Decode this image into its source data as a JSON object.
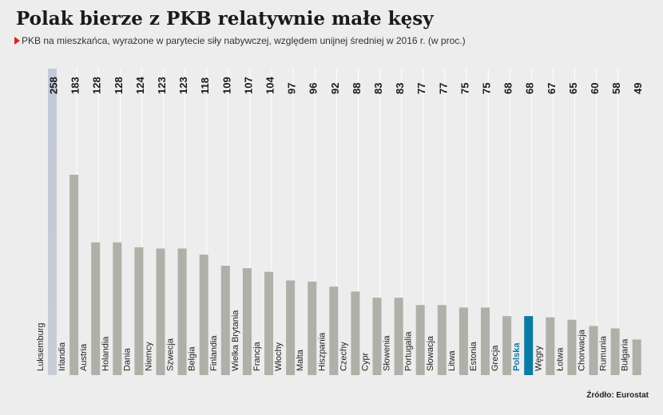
{
  "title": "Polak bierze z PKB relatywnie małe kęsy",
  "subtitle": "PKB na mieszkańca, wyrażone w parytecie siły nabywczej, względem unijnej średniej w 2016 r. (w proc.)",
  "source": "Źródło: Eurostat",
  "colors": {
    "background": "#ededed",
    "bar": "#b0b0a8",
    "bar_highlight_top": "#c2cad8",
    "highlight_label": "#0a7ba3",
    "separator": "#ffffff"
  },
  "chart_data": {
    "type": "bar",
    "categories": [
      "Luksemburg",
      "Irlandia",
      "Austria",
      "Holandia",
      "Dania",
      "Niemcy",
      "Szwecja",
      "Belgia",
      "Finlandia",
      "Wielka Brytania",
      "Francja",
      "Włochy",
      "Malta",
      "Hiszpania",
      "Czechy",
      "Cypr",
      "Słowenia",
      "Portugalia",
      "Słowacja",
      "Litwa",
      "Estonia",
      "Grecja",
      "Polska",
      "Węgry",
      "Łotwa",
      "Chorwacja",
      "Rumunia",
      "Bułgaria"
    ],
    "values": [
      258,
      183,
      128,
      128,
      124,
      123,
      123,
      118,
      109,
      107,
      104,
      97,
      96,
      92,
      88,
      83,
      83,
      77,
      77,
      75,
      75,
      68,
      68,
      67,
      65,
      60,
      58,
      49
    ],
    "value_labels": [
      "258",
      "183",
      "128",
      "128",
      "124",
      "123",
      "123",
      "118",
      "109",
      "107",
      "104",
      "97",
      "96",
      "92",
      "88",
      "83",
      "83",
      "77",
      "77",
      "75",
      "75",
      "68",
      "68",
      "67",
      "65",
      "60",
      "58",
      "49"
    ],
    "highlight": "Polska",
    "clipped": [
      "Luksemburg"
    ],
    "orientation": "vertical",
    "xlabel": "",
    "ylabel": "",
    "grid": false,
    "legend": "none"
  }
}
